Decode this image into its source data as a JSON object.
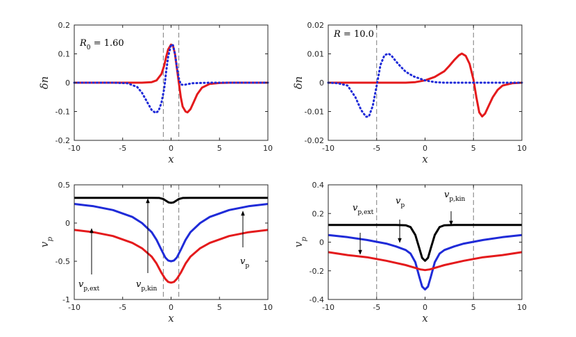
{
  "chart_data": [
    {
      "type": "line",
      "xlabel": "x",
      "ylabel": "δn",
      "xlim": [
        -10,
        10
      ],
      "ylim": [
        -0.2,
        0.2
      ],
      "xticks": [
        -10,
        -5,
        0,
        5,
        10
      ],
      "xtick_labels": [
        "-10",
        "-5",
        "0",
        "5",
        "10"
      ],
      "yticks": [
        -0.2,
        -0.1,
        0,
        0.1,
        0.2
      ],
      "ytick_labels": [
        "-0.2",
        "-0.1",
        "0",
        "0.1",
        "0.2"
      ],
      "annotation": "R₀ = 1.60",
      "vlines": [
        -0.8,
        0.8
      ],
      "series": [
        {
          "color": "#e41a1c",
          "style": "solid",
          "x": [
            -10,
            -4,
            -3,
            -2,
            -1.5,
            -1,
            -0.7,
            -0.5,
            -0.3,
            0,
            0.2,
            0.4,
            0.6,
            0.8,
            1.0,
            1.2,
            1.5,
            1.7,
            2.0,
            2.3,
            2.7,
            3.2,
            4,
            5,
            6,
            10
          ],
          "y": [
            0,
            0,
            0,
            0.002,
            0.008,
            0.03,
            0.06,
            0.09,
            0.115,
            0.132,
            0.128,
            0.1,
            0.05,
            0,
            -0.05,
            -0.083,
            -0.1,
            -0.103,
            -0.092,
            -0.07,
            -0.04,
            -0.017,
            -0.004,
            -0.001,
            0,
            0
          ]
        },
        {
          "color": "#1f2bd8",
          "style": "dotted",
          "x": [
            -10,
            -6,
            -4.5,
            -3.5,
            -3,
            -2.5,
            -2,
            -1.6,
            -1.3,
            -1.0,
            -0.7,
            -0.5,
            -0.3,
            0,
            0.2,
            0.4,
            0.6,
            0.8,
            1.0,
            1.3,
            1.7,
            2.2,
            3,
            4,
            6,
            10
          ],
          "y": [
            0,
            0,
            -0.002,
            -0.015,
            -0.035,
            -0.065,
            -0.095,
            -0.105,
            -0.098,
            -0.07,
            -0.02,
            0.04,
            0.09,
            0.132,
            0.13,
            0.1,
            0.055,
            0.015,
            -0.006,
            -0.008,
            -0.005,
            -0.002,
            -0.001,
            0,
            0,
            0
          ]
        }
      ]
    },
    {
      "type": "line",
      "xlabel": "x",
      "ylabel": "δn",
      "xlim": [
        -10,
        10
      ],
      "ylim": [
        -0.02,
        0.02
      ],
      "xticks": [
        -10,
        -5,
        0,
        5,
        10
      ],
      "xtick_labels": [
        "-10",
        "-5",
        "0",
        "5",
        "10"
      ],
      "yticks": [
        -0.02,
        -0.01,
        0,
        0.01,
        0.02
      ],
      "ytick_labels": [
        "-0.02",
        "-0.01",
        "0",
        "0.01",
        "0.02"
      ],
      "annotation": "R = 10.0",
      "vlines": [
        -5,
        5
      ],
      "series": [
        {
          "color": "#e41a1c",
          "style": "solid",
          "x": [
            -10,
            -4,
            -2,
            -1,
            0,
            1,
            2,
            2.5,
            3,
            3.5,
            3.8,
            4.2,
            4.6,
            5,
            5.3,
            5.6,
            5.9,
            6.2,
            6.6,
            7,
            7.5,
            8,
            9,
            10
          ],
          "y": [
            0,
            0,
            0,
            0.0002,
            0.0008,
            0.002,
            0.004,
            0.0058,
            0.0078,
            0.0095,
            0.0101,
            0.0093,
            0.0065,
            0.001,
            -0.005,
            -0.0103,
            -0.0117,
            -0.0107,
            -0.0078,
            -0.005,
            -0.0025,
            -0.001,
            -0.0002,
            0
          ]
        },
        {
          "color": "#1f2bd8",
          "style": "dotted",
          "x": [
            -10,
            -9,
            -8,
            -7.2,
            -6.6,
            -6.1,
            -5.8,
            -5.4,
            -5,
            -4.6,
            -4.2,
            -3.8,
            -3.5,
            -3,
            -2.5,
            -2,
            -1.2,
            0,
            1,
            2,
            4,
            10
          ],
          "y": [
            0,
            -0.0002,
            -0.001,
            -0.005,
            -0.0095,
            -0.0118,
            -0.0117,
            -0.008,
            -0.001,
            0.0062,
            0.0095,
            0.0101,
            0.0095,
            0.0074,
            0.0055,
            0.0038,
            0.0022,
            0.0008,
            0.0002,
            0,
            0,
            0
          ]
        }
      ]
    },
    {
      "type": "line",
      "xlabel": "x",
      "ylabel": "v_p",
      "xlim": [
        -10,
        10
      ],
      "ylim": [
        -1,
        0.5
      ],
      "xticks": [
        -10,
        -5,
        0,
        5,
        10
      ],
      "xtick_labels": [
        "-10",
        "-5",
        "0",
        "5",
        "10"
      ],
      "yticks": [
        -1,
        -0.5,
        0,
        0.5
      ],
      "ytick_labels": [
        "-1",
        "-0.5",
        "0",
        "0.5"
      ],
      "vlines": [
        -0.8,
        0.8
      ],
      "series": [
        {
          "name": "v_p,kin",
          "color": "#000000",
          "style": "solid",
          "x": [
            -10,
            -3,
            -2,
            -1.2,
            -0.8,
            -0.5,
            -0.25,
            0,
            0.25,
            0.5,
            0.8,
            1.2,
            2,
            3,
            10
          ],
          "y": [
            0.33,
            0.33,
            0.33,
            0.328,
            0.315,
            0.29,
            0.27,
            0.265,
            0.27,
            0.29,
            0.315,
            0.328,
            0.33,
            0.33,
            0.33
          ]
        },
        {
          "name": "v_p",
          "color": "#1f2bd8",
          "style": "solid",
          "x": [
            -10,
            -8,
            -6,
            -4,
            -3,
            -2,
            -1.5,
            -1,
            -0.6,
            -0.3,
            0,
            0.3,
            0.6,
            1,
            1.5,
            2,
            3,
            4,
            6,
            8,
            10
          ],
          "y": [
            0.25,
            0.22,
            0.17,
            0.08,
            0.0,
            -0.12,
            -0.22,
            -0.35,
            -0.45,
            -0.49,
            -0.5,
            -0.49,
            -0.45,
            -0.35,
            -0.22,
            -0.12,
            0.0,
            0.08,
            0.17,
            0.22,
            0.25
          ]
        },
        {
          "name": "v_p,ext",
          "color": "#e41a1c",
          "style": "solid",
          "x": [
            -10,
            -8,
            -6,
            -4,
            -3,
            -2,
            -1.5,
            -1,
            -0.6,
            -0.3,
            0,
            0.3,
            0.6,
            1,
            1.5,
            2,
            3,
            4,
            6,
            8,
            10
          ],
          "y": [
            -0.09,
            -0.12,
            -0.17,
            -0.26,
            -0.33,
            -0.44,
            -0.53,
            -0.65,
            -0.73,
            -0.77,
            -0.78,
            -0.77,
            -0.73,
            -0.65,
            -0.53,
            -0.44,
            -0.33,
            -0.26,
            -0.17,
            -0.12,
            -0.09
          ]
        }
      ],
      "annotations": [
        "v_p,ext",
        "v_p,kin",
        "v_p"
      ]
    },
    {
      "type": "line",
      "xlabel": "x",
      "ylabel": "v_p",
      "xlim": [
        -10,
        10
      ],
      "ylim": [
        -0.4,
        0.4
      ],
      "xticks": [
        -10,
        -5,
        0,
        5,
        10
      ],
      "xtick_labels": [
        "-10",
        "-5",
        "0",
        "5",
        "10"
      ],
      "yticks": [
        -0.4,
        -0.2,
        0,
        0.2,
        0.4
      ],
      "ytick_labels": [
        "-0.4",
        "-0.2",
        "0",
        "0.2",
        "0.4"
      ],
      "vlines": [
        -5,
        5
      ],
      "series": [
        {
          "name": "v_p,kin",
          "color": "#000000",
          "style": "solid",
          "x": [
            -10,
            -3,
            -2,
            -1.5,
            -1,
            -0.6,
            -0.3,
            0,
            0.3,
            0.6,
            1,
            1.5,
            2,
            3,
            10
          ],
          "y": [
            0.12,
            0.12,
            0.118,
            0.105,
            0.05,
            -0.04,
            -0.11,
            -0.13,
            -0.11,
            -0.04,
            0.05,
            0.105,
            0.118,
            0.12,
            0.12
          ]
        },
        {
          "name": "v_p",
          "color": "#1f2bd8",
          "style": "solid",
          "x": [
            -10,
            -8,
            -6,
            -4,
            -3,
            -2,
            -1.5,
            -1,
            -0.6,
            -0.3,
            0,
            0.3,
            0.6,
            1,
            1.5,
            2,
            3,
            4,
            6,
            8,
            10
          ],
          "y": [
            0.05,
            0.035,
            0.015,
            -0.01,
            -0.03,
            -0.055,
            -0.08,
            -0.14,
            -0.24,
            -0.31,
            -0.33,
            -0.31,
            -0.24,
            -0.14,
            -0.08,
            -0.055,
            -0.03,
            -0.01,
            0.015,
            0.035,
            0.05
          ]
        },
        {
          "name": "v_p,ext",
          "color": "#e41a1c",
          "style": "solid",
          "x": [
            -10,
            -8,
            -6,
            -4,
            -2,
            -1,
            -0.5,
            0,
            0.5,
            1,
            2,
            4,
            6,
            8,
            10
          ],
          "y": [
            -0.07,
            -0.09,
            -0.105,
            -0.13,
            -0.16,
            -0.18,
            -0.19,
            -0.195,
            -0.19,
            -0.18,
            -0.16,
            -0.13,
            -0.105,
            -0.09,
            -0.07
          ]
        }
      ],
      "annotations": [
        "v_p,ext",
        "v_p",
        "v_p,kin"
      ]
    }
  ]
}
